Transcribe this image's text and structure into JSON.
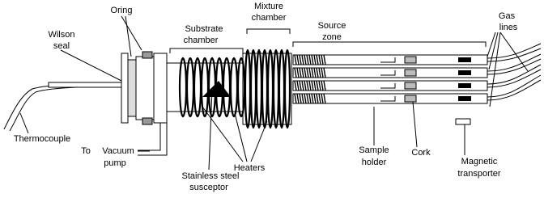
{
  "labels": [
    {
      "lines": [
        "Oring"
      ]
    },
    {
      "lines": [
        "Wilson",
        "seal"
      ]
    },
    {
      "lines": [
        "Substrate",
        "chamber"
      ]
    },
    {
      "lines": [
        "Mixture",
        "chamber"
      ]
    },
    {
      "lines": [
        "Source",
        "zone"
      ]
    },
    {
      "lines": [
        "Gas",
        "lines"
      ]
    },
    {
      "lines": [
        "Thermocouple"
      ]
    },
    {
      "lines": [
        "To",
        "Vacuum",
        "pump"
      ]
    },
    {
      "lines": [
        "Stainless steel",
        "susceptor"
      ]
    },
    {
      "lines": [
        "Heaters"
      ]
    },
    {
      "lines": [
        "Sample",
        "holder"
      ]
    },
    {
      "lines": [
        "Cork"
      ]
    },
    {
      "lines": [
        "Magnetic",
        "transporter"
      ]
    }
  ]
}
